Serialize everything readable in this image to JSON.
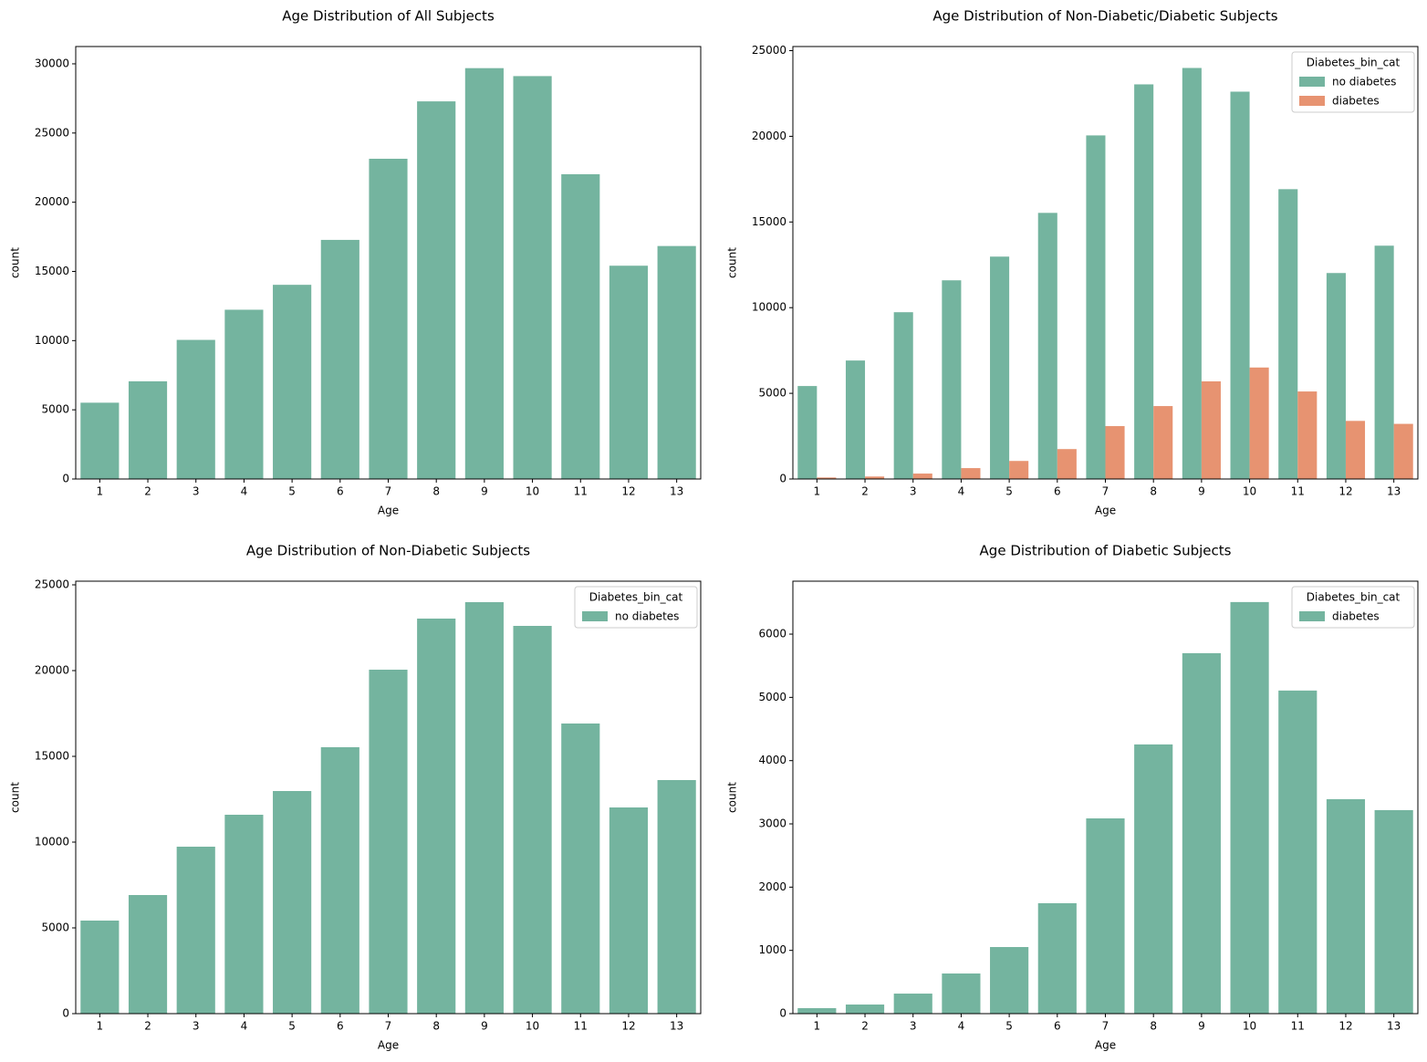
{
  "chart_data": [
    {
      "type": "bar",
      "title": "Age Distribution of All Subjects",
      "xlabel": "Age",
      "ylabel": "count",
      "categories": [
        "1",
        "2",
        "3",
        "4",
        "5",
        "6",
        "7",
        "8",
        "9",
        "10",
        "11",
        "12",
        "13"
      ],
      "values": [
        5513,
        7059,
        10051,
        12231,
        14032,
        17278,
        23140,
        27288,
        29688,
        29113,
        22023,
        15412,
        16835
      ],
      "color": "#74b49f",
      "ylim": [
        0,
        31250
      ],
      "yticks": [
        0,
        5000,
        10000,
        15000,
        20000,
        25000,
        30000
      ]
    },
    {
      "type": "bar",
      "title": "Age Distribution of Non-Diabetic/Diabetic Subjects",
      "xlabel": "Age",
      "ylabel": "count",
      "categories": [
        "1",
        "2",
        "3",
        "4",
        "5",
        "6",
        "7",
        "8",
        "9",
        "10",
        "11",
        "12",
        "13"
      ],
      "series": [
        {
          "name": "no diabetes",
          "color": "#74b49f",
          "values": [
            5426,
            6915,
            9734,
            11596,
            12979,
            15532,
            20053,
            23032,
            23989,
            22606,
            16915,
            12021,
            13617
          ]
        },
        {
          "name": "diabetes",
          "color": "#e79371",
          "values": [
            87,
            144,
            317,
            635,
            1053,
            1746,
            3087,
            4256,
            5699,
            6507,
            5108,
            3391,
            3218
          ]
        }
      ],
      "legend_title": "Diabetes_bin_cat",
      "legend": "upper right",
      "ylim": [
        0,
        25240
      ],
      "yticks": [
        0,
        5000,
        10000,
        15000,
        20000,
        25000
      ]
    },
    {
      "type": "bar",
      "title": "Age Distribution of Non-Diabetic Subjects",
      "xlabel": "Age",
      "ylabel": "count",
      "categories": [
        "1",
        "2",
        "3",
        "4",
        "5",
        "6",
        "7",
        "8",
        "9",
        "10",
        "11",
        "12",
        "13"
      ],
      "series": [
        {
          "name": "no diabetes",
          "color": "#74b49f",
          "values": [
            5426,
            6915,
            9734,
            11596,
            12979,
            15532,
            20053,
            23032,
            23989,
            22606,
            16915,
            12021,
            13617
          ]
        }
      ],
      "legend_title": "Diabetes_bin_cat",
      "legend": "upper right",
      "ylim": [
        0,
        25213
      ],
      "yticks": [
        0,
        5000,
        10000,
        15000,
        20000,
        25000
      ]
    },
    {
      "type": "bar",
      "title": "Age Distribution of Diabetic Subjects",
      "xlabel": "Age",
      "ylabel": "count",
      "categories": [
        "1",
        "2",
        "3",
        "4",
        "5",
        "6",
        "7",
        "8",
        "9",
        "10",
        "11",
        "12",
        "13"
      ],
      "series": [
        {
          "name": "diabetes",
          "color": "#74b49f",
          "values": [
            87,
            144,
            317,
            635,
            1053,
            1746,
            3087,
            4256,
            5699,
            6507,
            5108,
            3391,
            3218
          ]
        }
      ],
      "legend_title": "Diabetes_bin_cat",
      "legend": "upper right",
      "ylim": [
        0,
        6837
      ],
      "yticks": [
        0,
        1000,
        2000,
        3000,
        4000,
        5000,
        6000
      ]
    }
  ]
}
